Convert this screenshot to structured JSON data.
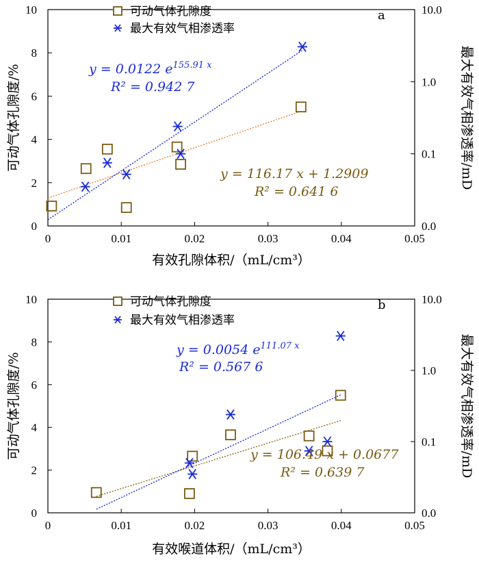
{
  "chart_data": [
    {
      "type": "scatter",
      "panel_letter": "a",
      "xlabel": "有效孔隙体积/（mL/cm³）",
      "ylabel_left": "可动气体孔隙度/%",
      "ylabel_right": "最大有效气相渗透率/mD",
      "xlim": [
        0,
        0.05
      ],
      "ylim_left": [
        0,
        10
      ],
      "ylim_right_log": [
        0.01,
        10
      ],
      "x_ticks": [
        "0",
        "0.01",
        "0.02",
        "0.03",
        "0.04",
        "0.05"
      ],
      "y_ticks_left": [
        "0",
        "2",
        "4",
        "6",
        "8",
        "10"
      ],
      "y_ticks_right": [
        "0.0",
        "0.1",
        "1.0",
        "10.0"
      ],
      "legend": [
        "可动气体孔隙度",
        "最大有效气相渗透率"
      ],
      "series": [
        {
          "name": "可动气体孔隙度",
          "axis": "left",
          "marker": "square",
          "color": "#7a5a12",
          "x": [
            0.0005,
            0.0052,
            0.0081,
            0.0107,
            0.0176,
            0.0181,
            0.0345
          ],
          "y": [
            0.92,
            2.65,
            3.55,
            0.85,
            3.65,
            2.85,
            5.5
          ]
        },
        {
          "name": "最大有效气相渗透率",
          "axis": "right",
          "marker": "asterisk",
          "color": "#1a2bd8",
          "x": [
            0.0051,
            0.0081,
            0.0107,
            0.0177,
            0.0181,
            0.0347
          ],
          "y": [
            0.035,
            0.075,
            0.052,
            0.24,
            0.1,
            3.05
          ]
        }
      ],
      "trendlines": [
        {
          "axis": "left",
          "kind": "linear",
          "slope": 116.17,
          "intercept": 1.2909,
          "x_range": [
            0,
            0.0345
          ],
          "color": "#e8833a"
        },
        {
          "axis": "right",
          "kind": "exp",
          "a": 0.0122,
          "b": 155.91,
          "x_range": [
            0,
            0.0347
          ],
          "color": "#1a2bd8"
        }
      ],
      "eq_blue_main": "y = 0.0122 e",
      "eq_blue_exp": "155.91 x",
      "r2_blue": "R² = 0.942 7",
      "eq_brown": "y = 116.17 x + 1.2909",
      "r2_brown": "R² = 0.641 6"
    },
    {
      "type": "scatter",
      "panel_letter": "b",
      "xlabel": "有效喉道体积/（mL/cm³）",
      "ylabel_left": "可动气体孔隙度/%",
      "ylabel_right": "最大有效气相渗透率/mD",
      "xlim": [
        0,
        0.05
      ],
      "ylim_left": [
        0,
        10
      ],
      "ylim_right_log": [
        0.01,
        10
      ],
      "x_ticks": [
        "0",
        "0.01",
        "0.02",
        "0.03",
        "0.04",
        "0.05"
      ],
      "y_ticks_left": [
        "0",
        "2",
        "4",
        "6",
        "8",
        "10"
      ],
      "y_ticks_right": [
        "0.0",
        "0.1",
        "1.0",
        "10.0"
      ],
      "legend": [
        "可动气体孔隙度",
        "最大有效气相渗透率"
      ],
      "series": [
        {
          "name": "可动气体孔隙度",
          "axis": "left",
          "marker": "square",
          "color": "#7a5a12",
          "x": [
            0.0066,
            0.0193,
            0.0197,
            0.0249,
            0.0356,
            0.0381,
            0.0399
          ],
          "y": [
            0.95,
            0.9,
            2.65,
            3.65,
            3.6,
            2.9,
            5.5
          ]
        },
        {
          "name": "最大有效气相渗透率",
          "axis": "right",
          "marker": "asterisk",
          "color": "#1a2bd8",
          "x": [
            0.0193,
            0.0197,
            0.0249,
            0.0356,
            0.0381,
            0.0399
          ],
          "y": [
            0.05,
            0.035,
            0.24,
            0.074,
            0.1,
            3.05
          ]
        }
      ],
      "trendlines": [
        {
          "axis": "left",
          "kind": "linear",
          "slope": 106.49,
          "intercept": 0.0677,
          "x_range": [
            0.0066,
            0.0399
          ],
          "color": "#8b6d1a"
        },
        {
          "axis": "right",
          "kind": "exp",
          "a": 0.0054,
          "b": 111.07,
          "x_range": [
            0.0066,
            0.0399
          ],
          "color": "#1a2bd8"
        }
      ],
      "eq_blue_main": "y = 0.0054 e",
      "eq_blue_exp": "111.07 x",
      "r2_blue": "R² = 0.567 6",
      "eq_brown": "y = 106.49 x + 0.0677",
      "r2_brown": "R² = 0.639 7"
    }
  ]
}
